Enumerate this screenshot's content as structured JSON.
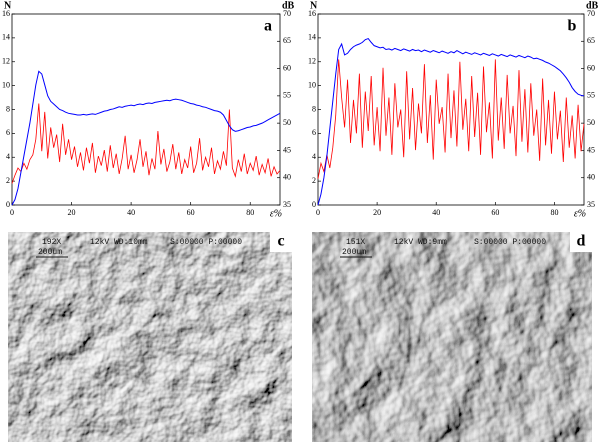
{
  "chart_data": [
    {
      "type": "line",
      "panel": "a",
      "ylabel": "N",
      "y2label": "dB",
      "xlabel": "ε%",
      "xlim": [
        0,
        90
      ],
      "xticks": [
        0,
        20,
        40,
        60,
        80
      ],
      "ylim": [
        0,
        16
      ],
      "yticks": [
        0,
        2,
        4,
        6,
        8,
        10,
        12,
        14,
        16
      ],
      "y2lim": [
        35,
        70
      ],
      "y2ticks": [
        35,
        40,
        45,
        50,
        55,
        60,
        65,
        70
      ],
      "x": [
        0,
        1,
        2,
        3,
        4,
        5,
        6,
        7,
        8,
        9,
        10,
        11,
        12,
        13,
        14,
        15,
        16,
        17,
        18,
        19,
        20,
        21,
        22,
        23,
        24,
        25,
        26,
        27,
        28,
        29,
        30,
        31,
        32,
        33,
        34,
        35,
        36,
        37,
        38,
        39,
        40,
        41,
        42,
        43,
        44,
        45,
        46,
        47,
        48,
        49,
        50,
        51,
        52,
        53,
        54,
        55,
        56,
        57,
        58,
        59,
        60,
        61,
        62,
        63,
        64,
        65,
        66,
        67,
        68,
        69,
        70,
        71,
        72,
        73,
        74,
        75,
        76,
        77,
        78,
        79,
        80,
        81,
        82,
        83,
        84,
        85,
        86,
        87,
        88,
        89,
        90
      ],
      "series": [
        {
          "color": "#ff0000",
          "values": [
            1.8,
            2.5,
            3.1,
            2.8,
            3.5,
            3.0,
            3.8,
            4.2,
            5.5,
            8.5,
            4.5,
            7.8,
            3.9,
            6.5,
            4.8,
            5.9,
            3.6,
            6.8,
            4.2,
            5.5,
            3.8,
            4.9,
            3.2,
            4.4,
            2.9,
            4.8,
            3.5,
            5.2,
            2.7,
            4.1,
            3.3,
            4.6,
            2.8,
            5.0,
            3.1,
            4.3,
            2.6,
            3.9,
            5.8,
            3.0,
            4.2,
            2.7,
            3.8,
            5.5,
            3.2,
            4.5,
            2.5,
            3.9,
            3.0,
            6.2,
            3.4,
            4.7,
            2.8,
            3.6,
            5.1,
            3.0,
            4.4,
            2.6,
            3.8,
            3.1,
            4.9,
            2.7,
            3.5,
            5.6,
            2.9,
            4.0,
            3.2,
            4.8,
            2.6,
            3.7,
            3.0,
            4.5,
            3.3,
            8.0,
            3.1,
            2.4,
            3.8,
            2.8,
            4.3,
            2.6,
            3.5,
            2.9,
            4.1,
            2.5,
            3.4,
            2.7,
            3.9,
            2.4,
            3.2,
            2.6,
            2.9
          ]
        },
        {
          "color": "#0000ff",
          "axis": "y2",
          "values": [
            35,
            36,
            38,
            41,
            44,
            47,
            50,
            53.5,
            57,
            59.5,
            59,
            57,
            55,
            54,
            53.5,
            53,
            52.5,
            52.3,
            52,
            51.8,
            51.7,
            51.6,
            51.5,
            51.5,
            51.6,
            51.5,
            51.6,
            51.7,
            51.6,
            51.8,
            52,
            52.2,
            52.3,
            52.5,
            52.6,
            52.8,
            53,
            52.9,
            53.1,
            53.2,
            53.3,
            53.2,
            53.4,
            53.5,
            53.4,
            53.6,
            53.7,
            53.6,
            53.8,
            53.9,
            54,
            54.1,
            54.2,
            54.1,
            54.3,
            54.4,
            54.3,
            54.2,
            54.0,
            53.8,
            53.6,
            53.5,
            53.3,
            53.2,
            53.0,
            52.9,
            52.7,
            52.5,
            52.3,
            52.2,
            52.0,
            51.5,
            50.5,
            49.5,
            48.8,
            48.5,
            48.6,
            48.8,
            49.0,
            49.2,
            49.3,
            49.5,
            49.6,
            49.8,
            50.0,
            50.3,
            50.6,
            50.9,
            51.2,
            51.5,
            51.8
          ]
        }
      ]
    },
    {
      "type": "line",
      "panel": "b",
      "ylabel": "N",
      "y2label": "dB",
      "xlabel": "ε%",
      "xlim": [
        0,
        90
      ],
      "xticks": [
        0,
        20,
        40,
        60,
        80
      ],
      "ylim": [
        0,
        16
      ],
      "yticks": [
        0,
        2,
        4,
        6,
        8,
        10,
        12,
        14,
        16
      ],
      "y2lim": [
        35,
        70
      ],
      "y2ticks": [
        35,
        40,
        45,
        50,
        55,
        60,
        65,
        70
      ],
      "x": [
        0,
        1,
        2,
        3,
        4,
        5,
        6,
        7,
        8,
        9,
        10,
        11,
        12,
        13,
        14,
        15,
        16,
        17,
        18,
        19,
        20,
        21,
        22,
        23,
        24,
        25,
        26,
        27,
        28,
        29,
        30,
        31,
        32,
        33,
        34,
        35,
        36,
        37,
        38,
        39,
        40,
        41,
        42,
        43,
        44,
        45,
        46,
        47,
        48,
        49,
        50,
        51,
        52,
        53,
        54,
        55,
        56,
        57,
        58,
        59,
        60,
        61,
        62,
        63,
        64,
        65,
        66,
        67,
        68,
        69,
        70,
        71,
        72,
        73,
        74,
        75,
        76,
        77,
        78,
        79,
        80,
        81,
        82,
        83,
        84,
        85,
        86,
        87,
        88,
        89,
        90
      ],
      "series": [
        {
          "color": "#ff0000",
          "values": [
            2.2,
            3.5,
            2.8,
            4.2,
            3.1,
            4.8,
            7.5,
            12.2,
            9.0,
            6.5,
            10.5,
            5.2,
            8.8,
            6.0,
            11.0,
            4.8,
            9.5,
            6.2,
            10.8,
            5.0,
            8.2,
            4.5,
            11.5,
            5.8,
            9.0,
            4.2,
            10.2,
            6.5,
            8.0,
            4.0,
            11.2,
            5.5,
            9.8,
            4.6,
            8.5,
            6.0,
            11.8,
            5.2,
            9.2,
            3.8,
            10.5,
            6.8,
            8.2,
            4.4,
            11.0,
            5.6,
            9.6,
            4.9,
            12.0,
            6.3,
            8.9,
            4.5,
            10.8,
            5.7,
            9.4,
            4.2,
            11.6,
            6.1,
            8.6,
            3.9,
            12.2,
            5.4,
            9.0,
            4.7,
            10.9,
            6.0,
            8.3,
            4.1,
            11.3,
            5.3,
            9.7,
            4.4,
            10.2,
            5.8,
            8.0,
            3.7,
            10.6,
            5.0,
            8.8,
            4.3,
            9.5,
            5.5,
            7.9,
            3.6,
            9.0,
            4.8,
            7.5,
            3.9,
            8.4,
            4.5,
            6.8
          ]
        },
        {
          "color": "#0000ff",
          "axis": "y2",
          "values": [
            35,
            37,
            40,
            44,
            49,
            54,
            59,
            63.5,
            64.5,
            62.5,
            62.8,
            63.5,
            64,
            64.3,
            64.5,
            64.8,
            65.3,
            65.5,
            64.8,
            64.2,
            64.0,
            63.8,
            63.9,
            63.5,
            63.6,
            63.4,
            63.7,
            63.5,
            63.3,
            63.6,
            63.4,
            63.2,
            63.5,
            63.3,
            63.4,
            63.1,
            63.4,
            63.2,
            63.0,
            63.3,
            63.1,
            62.9,
            63.2,
            63.0,
            62.8,
            63.1,
            62.9,
            63.3,
            63.0,
            62.7,
            63.0,
            62.8,
            62.6,
            62.9,
            62.7,
            62.5,
            62.8,
            62.6,
            62.4,
            62.7,
            62.5,
            62.3,
            62.6,
            62.4,
            62.2,
            62.5,
            62.3,
            62.1,
            62.4,
            62.2,
            62.0,
            62.3,
            62.1,
            61.8,
            61.9,
            61.7,
            61.5,
            61.2,
            61.0,
            60.7,
            60.4,
            60.0,
            59.6,
            59.0,
            58.3,
            57.5,
            56.5,
            55.8,
            55.3,
            55.1,
            55.0
          ]
        }
      ]
    }
  ],
  "images": [
    {
      "panel": "c",
      "magnification": "192X",
      "settings": "12kV WD:10mm",
      "counters": "S:00000 P:00000",
      "scale": "200um"
    },
    {
      "panel": "d",
      "magnification": "151X",
      "settings": "12kV WD:9mm",
      "counters": "S:00000 P:00000",
      "scale": "200um"
    }
  ]
}
